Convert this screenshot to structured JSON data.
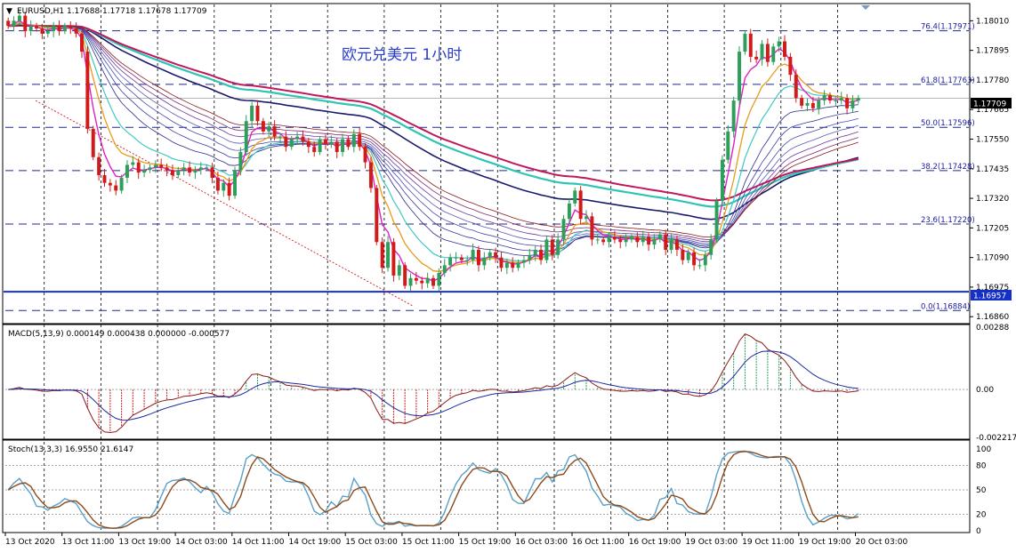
{
  "header": {
    "symbol_line": "EURUSD,H1  1.17688 1.17718 1.17678 1.17709",
    "title": "欧元兑美元  1小时"
  },
  "macd_panel": {
    "label": "MACD(5,13,9) 0.000149 0.000438 0.000000 -0.000577"
  },
  "stoch_panel": {
    "label": "Stoch(13,3,3) 16.9550 21.6147"
  },
  "price_labels": {
    "current": "1.17709",
    "support": "1.16957"
  },
  "colors": {
    "bull": "#2e9e5b",
    "bear": "#d11b1b",
    "support_line": "#1530c8",
    "fib_line": "#1e2a8a",
    "current_box": "#000000",
    "trend_line": "#d11b1b"
  },
  "chart_data": [
    {
      "type": "candlestick",
      "title": "欧元兑美元  1小时",
      "symbol": "EURUSD,H1",
      "ohlc_last": {
        "open": 1.17688,
        "high": 1.17718,
        "low": 1.17678,
        "close": 1.17709
      },
      "ylim": [
        1.1684,
        1.1807
      ],
      "y_ticks": [
        "1.18010",
        "1.17895",
        "1.17780",
        "1.17665",
        "1.17550",
        "1.17435",
        "1.17320",
        "1.17205",
        "1.17090",
        "1.16975",
        "1.16860"
      ],
      "x_tick_labels": [
        "13 Oct 2020",
        "13 Oct 11:00",
        "13 Oct 19:00",
        "14 Oct 03:00",
        "14 Oct 11:00",
        "14 Oct 19:00",
        "15 Oct 03:00",
        "15 Oct 11:00",
        "15 Oct 19:00",
        "16 Oct 03:00",
        "16 Oct 11:00",
        "16 Oct 19:00",
        "19 Oct 03:00",
        "19 Oct 11:00",
        "19 Oct 19:00",
        "20 Oct 03:00"
      ],
      "fibonacci_levels": [
        {
          "label": "76.4(1.17971)",
          "value": 1.17971
        },
        {
          "label": "61.8(1.17763)",
          "value": 1.17763
        },
        {
          "label": "50.0(1.17596)",
          "value": 1.17596
        },
        {
          "label": "38.2(1.17428)",
          "value": 1.17428
        },
        {
          "label": "23.6(1.17220)",
          "value": 1.1722
        },
        {
          "label": "0.0(1.16884)",
          "value": 1.16884
        }
      ],
      "horizontal_lines": [
        {
          "label": "1.16957",
          "value": 1.16957
        }
      ],
      "current_price": 1.17709,
      "grid": true,
      "close_series": [
        1.1799,
        1.1801,
        1.1803,
        1.1797,
        1.1799,
        1.1798,
        1.1796,
        1.1797,
        1.1799,
        1.1797,
        1.1799,
        1.1798,
        1.1796,
        1.1789,
        1.1759,
        1.1748,
        1.1741,
        1.1738,
        1.1737,
        1.1735,
        1.174,
        1.1745,
        1.1746,
        1.1742,
        1.1743,
        1.1744,
        1.1745,
        1.1744,
        1.1743,
        1.1741,
        1.1743,
        1.1744,
        1.1742,
        1.1743,
        1.1744,
        1.1744,
        1.174,
        1.1735,
        1.1738,
        1.1733,
        1.1743,
        1.175,
        1.1762,
        1.1768,
        1.1762,
        1.1758,
        1.176,
        1.1756,
        1.1756,
        1.1752,
        1.1755,
        1.1756,
        1.1754,
        1.1752,
        1.175,
        1.1755,
        1.1753,
        1.1754,
        1.175,
        1.1755,
        1.1752,
        1.1757,
        1.1752,
        1.1746,
        1.1736,
        1.1715,
        1.1705,
        1.1715,
        1.1702,
        1.1706,
        1.1698,
        1.1701,
        1.17,
        1.1699,
        1.1701,
        1.1698,
        1.1703,
        1.1706,
        1.1709,
        1.1709,
        1.1708,
        1.1708,
        1.1712,
        1.1706,
        1.1709,
        1.1711,
        1.1709,
        1.1705,
        1.1707,
        1.1705,
        1.1707,
        1.1708,
        1.171,
        1.1712,
        1.1708,
        1.1716,
        1.171,
        1.1716,
        1.1724,
        1.173,
        1.1735,
        1.1724,
        1.1725,
        1.1716,
        1.1716,
        1.1715,
        1.1717,
        1.1716,
        1.1715,
        1.1716,
        1.1717,
        1.1715,
        1.1717,
        1.1714,
        1.1716,
        1.1718,
        1.1712,
        1.1716,
        1.1712,
        1.1708,
        1.1711,
        1.1706,
        1.1706,
        1.171,
        1.1716,
        1.1731,
        1.1747,
        1.1758,
        1.177,
        1.1789,
        1.1796,
        1.1787,
        1.1786,
        1.1792,
        1.1785,
        1.1791,
        1.1793,
        1.1787,
        1.178,
        1.1771,
        1.1768,
        1.1769,
        1.1767,
        1.177,
        1.1772,
        1.177,
        1.177,
        1.1771,
        1.1767,
        1.177,
        1.1771
      ]
    },
    {
      "type": "bar",
      "title": "MACD(5,13,9)",
      "values_shown": [
        "0.000149",
        "0.000438",
        "0.000000",
        "-0.000577"
      ],
      "ylim": [
        -0.002217,
        0.00288
      ],
      "y_ticks": [
        "0.00288",
        "0.00",
        "-0.002217"
      ]
    },
    {
      "type": "line",
      "title": "Stoch(13,3,3)",
      "values_shown": [
        "16.9550",
        "21.6147"
      ],
      "ylim": [
        0,
        100
      ],
      "y_ticks": [
        "100",
        "80",
        "50",
        "20",
        "0"
      ],
      "levels": [
        20,
        50,
        80
      ]
    }
  ]
}
